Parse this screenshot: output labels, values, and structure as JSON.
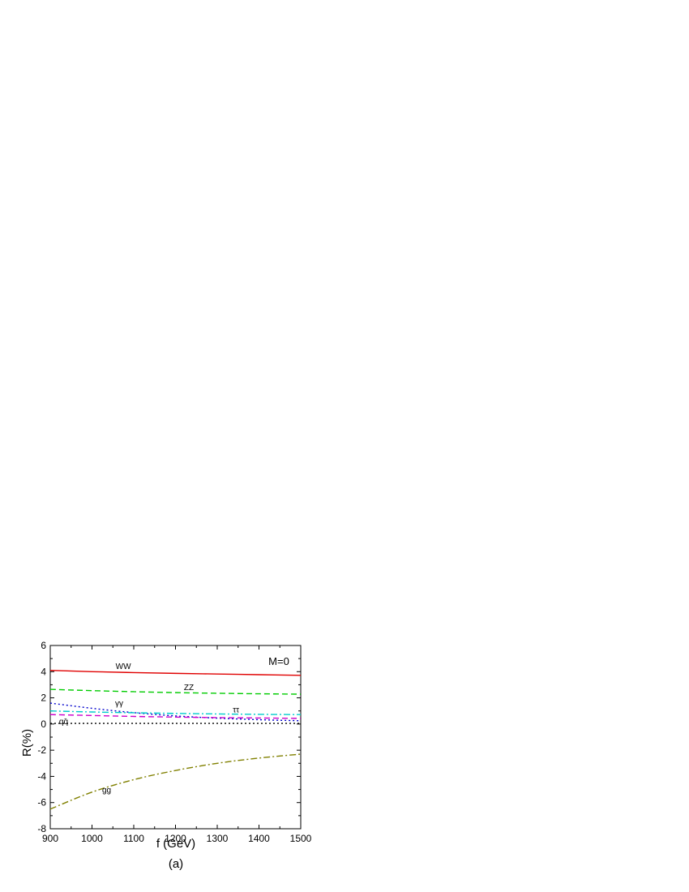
{
  "chart_data": {
    "type": "line",
    "xlabel": "f (GeV)",
    "ylabel": "R(%)",
    "caption": "(a)",
    "annotation": "M=0",
    "xlim": [
      900,
      1500
    ],
    "ylim": [
      -8,
      6
    ],
    "xticks": [
      900,
      1000,
      1100,
      1200,
      1300,
      1400,
      1500
    ],
    "yticks": [
      -8,
      -6,
      -4,
      -2,
      0,
      2,
      4,
      6
    ],
    "grid": false,
    "legend": "none",
    "series": [
      {
        "name": "WW",
        "color": "#e00000",
        "dash": "solid",
        "x": [
          900,
          1000,
          1100,
          1200,
          1300,
          1400,
          1500
        ],
        "y": [
          4.1,
          4.0,
          3.93,
          3.87,
          3.82,
          3.77,
          3.72
        ],
        "label_pos": [
          1075,
          4.2
        ]
      },
      {
        "name": "ZZ",
        "color": "#00cc00",
        "dash": "dashed",
        "x": [
          900,
          1000,
          1100,
          1200,
          1300,
          1400,
          1500
        ],
        "y": [
          2.65,
          2.55,
          2.47,
          2.4,
          2.35,
          2.31,
          2.28
        ],
        "label_pos": [
          1232,
          2.6
        ]
      },
      {
        "name": "γγ",
        "color": "#0000cc",
        "dash": "dotted",
        "x": [
          900,
          1000,
          1100,
          1200,
          1300,
          1400,
          1500
        ],
        "y": [
          1.6,
          1.2,
          0.87,
          0.62,
          0.45,
          0.33,
          0.25
        ],
        "label_pos": [
          1065,
          1.4
        ]
      },
      {
        "name": "ττ",
        "color": "#00cccc",
        "dash": "dashdot",
        "x": [
          900,
          1000,
          1100,
          1200,
          1300,
          1400,
          1500
        ],
        "y": [
          1.0,
          0.92,
          0.86,
          0.81,
          0.77,
          0.74,
          0.72
        ],
        "label_pos": [
          1345,
          0.9
        ]
      },
      {
        "name": "qq̄",
        "color": "#cc00cc",
        "dash": "dashed",
        "x": [
          900,
          1000,
          1100,
          1200,
          1300,
          1400,
          1500
        ],
        "y": [
          0.72,
          0.65,
          0.58,
          0.53,
          0.49,
          0.46,
          0.43
        ],
        "label_pos": [
          932,
          0.0
        ]
      },
      {
        "name": "",
        "color": "#000000",
        "dash": "dotted",
        "x": [
          900,
          1500
        ],
        "y": [
          0.05,
          0.05
        ]
      },
      {
        "name": "gg",
        "color": "#808000",
        "dash": "dashdot",
        "x": [
          900,
          1000,
          1100,
          1200,
          1300,
          1400,
          1500
        ],
        "y": [
          -6.5,
          -5.2,
          -4.25,
          -3.55,
          -3.0,
          -2.6,
          -2.3
        ],
        "label_pos": [
          1035,
          -5.25
        ]
      }
    ]
  }
}
